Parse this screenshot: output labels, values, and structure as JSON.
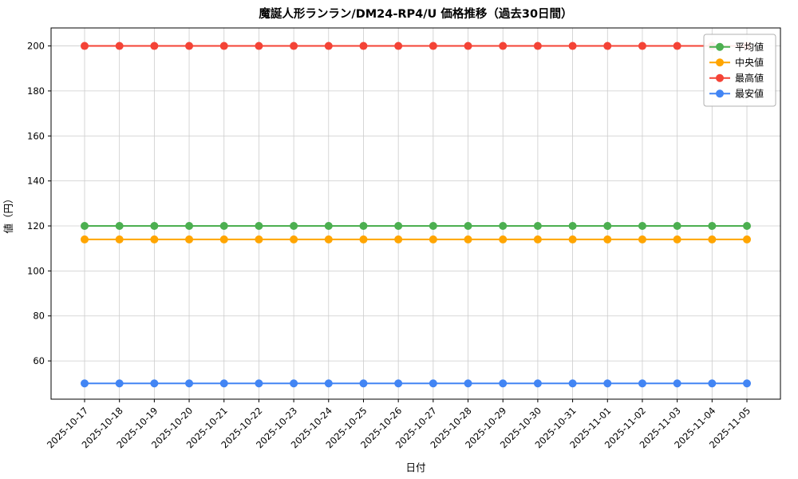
{
  "chart_data": {
    "type": "line",
    "title": "魔誕人形ランラン/DM24-RP4/U 価格推移（過去30日間）",
    "xlabel": "日付",
    "ylabel": "値（円）",
    "x": [
      "2025-10-17",
      "2025-10-18",
      "2025-10-19",
      "2025-10-20",
      "2025-10-21",
      "2025-10-22",
      "2025-10-23",
      "2025-10-24",
      "2025-10-25",
      "2025-10-26",
      "2025-10-27",
      "2025-10-28",
      "2025-10-29",
      "2025-10-30",
      "2025-10-31",
      "2025-11-01",
      "2025-11-02",
      "2025-11-03",
      "2025-11-04",
      "2025-11-05"
    ],
    "series": [
      {
        "name": "平均値",
        "color": "#4caf50",
        "values": [
          120,
          120,
          120,
          120,
          120,
          120,
          120,
          120,
          120,
          120,
          120,
          120,
          120,
          120,
          120,
          120,
          120,
          120,
          120,
          120
        ]
      },
      {
        "name": "中央値",
        "color": "#ffa500",
        "values": [
          114,
          114,
          114,
          114,
          114,
          114,
          114,
          114,
          114,
          114,
          114,
          114,
          114,
          114,
          114,
          114,
          114,
          114,
          114,
          114
        ]
      },
      {
        "name": "最高値",
        "color": "#f44336",
        "values": [
          200,
          200,
          200,
          200,
          200,
          200,
          200,
          200,
          200,
          200,
          200,
          200,
          200,
          200,
          200,
          200,
          200,
          200,
          200,
          200
        ]
      },
      {
        "name": "最安値",
        "color": "#4285f4",
        "values": [
          50,
          50,
          50,
          50,
          50,
          50,
          50,
          50,
          50,
          50,
          50,
          50,
          50,
          50,
          50,
          50,
          50,
          50,
          50,
          50
        ]
      }
    ],
    "yticks": [
      60,
      80,
      100,
      120,
      140,
      160,
      180,
      200
    ],
    "ylim": [
      43,
      208
    ],
    "grid": true,
    "legend_position": "upper-right",
    "colors": {
      "grid": "#cccccc",
      "axis": "#000000",
      "legend_border": "#b0b0b0",
      "background": "#ffffff"
    }
  }
}
